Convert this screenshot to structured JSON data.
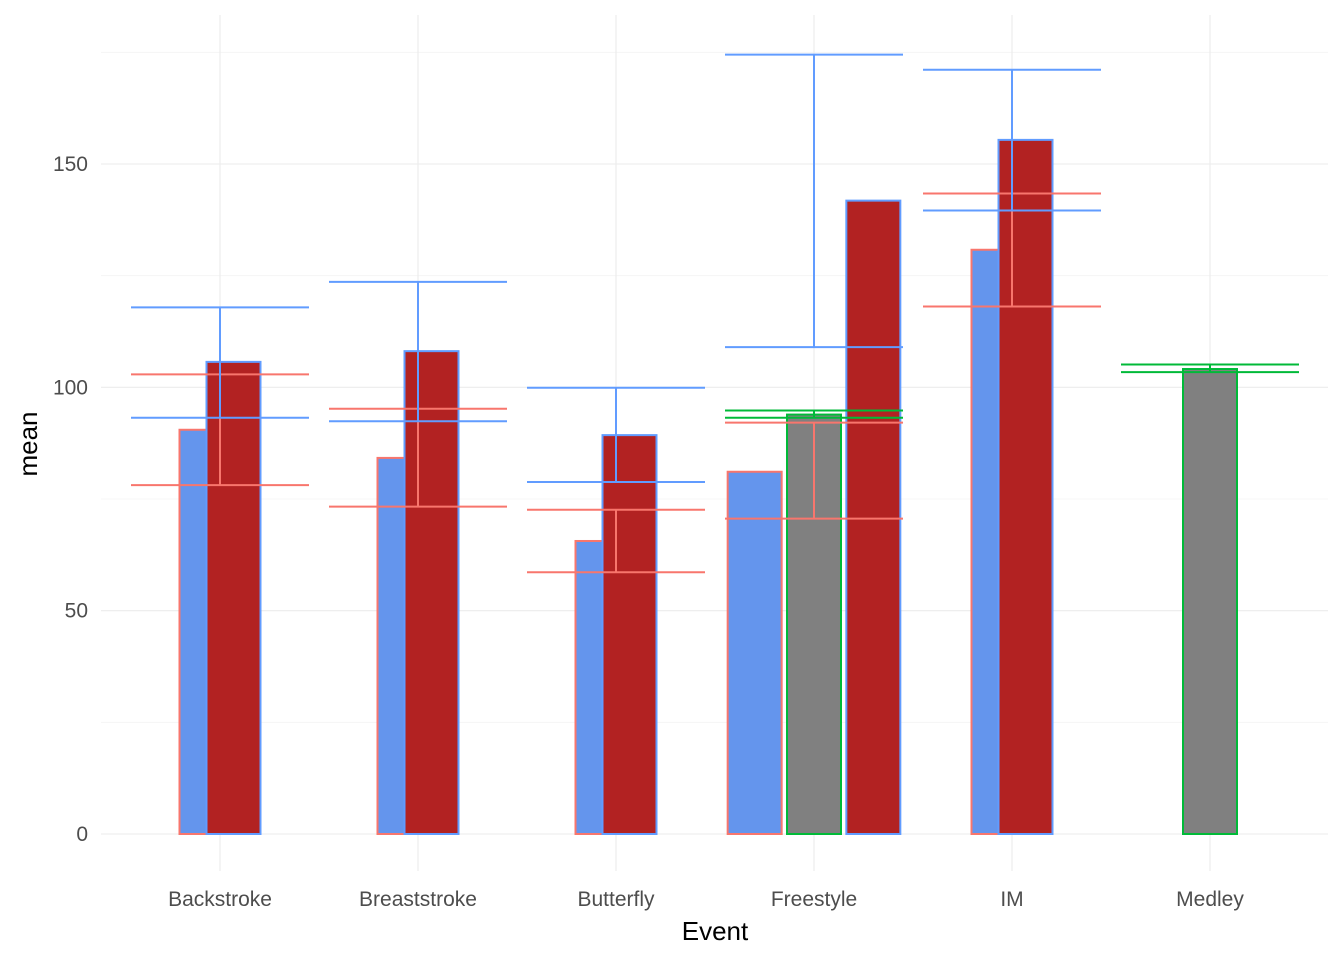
{
  "chart_data": {
    "type": "bar",
    "xlabel": "Event",
    "ylabel": "mean",
    "ylim": [
      -8,
      183
    ],
    "y_ticks": [
      0,
      50,
      100,
      150
    ],
    "grid": true,
    "categories": [
      "Backstroke",
      "Breaststroke",
      "Butterfly",
      "Freestyle",
      "IM",
      "Medley"
    ],
    "series": [
      {
        "fill": "#6495ED",
        "border": "#F8766D",
        "values": [
          90.5,
          84.2,
          65.6,
          81.1,
          130.8,
          null
        ],
        "error_color": "#F8766D",
        "error_low": [
          78.1,
          73.3,
          58.6,
          70.6,
          118.1,
          null
        ],
        "error_high": [
          102.9,
          95.2,
          72.6,
          92.1,
          143.4,
          null
        ]
      },
      {
        "fill": "#808080",
        "border": "#00BA38",
        "values": [
          null,
          null,
          null,
          93.9,
          null,
          104.1
        ],
        "error_color": "#00BA38",
        "error_low": [
          null,
          null,
          null,
          93.2,
          null,
          103.4
        ],
        "error_high": [
          null,
          null,
          null,
          94.8,
          null,
          105.1
        ]
      },
      {
        "fill": "#B22222",
        "border": "#619CFF",
        "values": [
          105.7,
          108.1,
          89.3,
          141.8,
          155.4,
          null
        ],
        "error_color": "#619CFF",
        "error_low": [
          93.2,
          92.4,
          78.8,
          109.0,
          139.6,
          null
        ],
        "error_high": [
          117.9,
          123.6,
          99.9,
          174.5,
          171.1,
          null
        ]
      }
    ]
  }
}
